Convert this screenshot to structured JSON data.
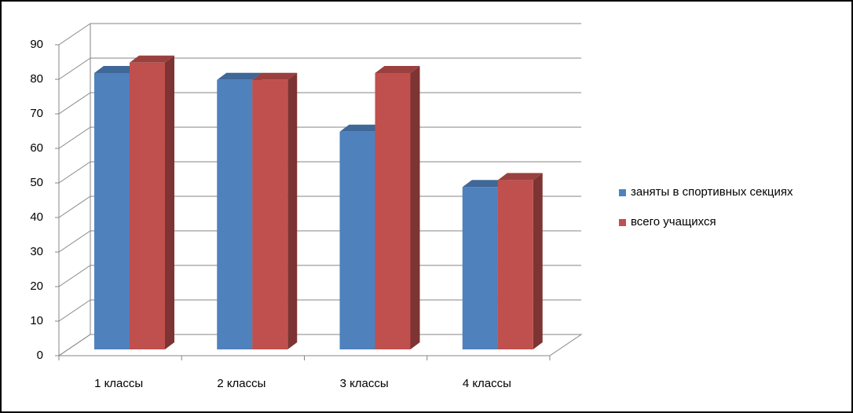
{
  "chart_data": {
    "type": "bar3d",
    "categories": [
      "1 классы",
      "2 классы",
      "3 классы",
      "4 классы"
    ],
    "series": [
      {
        "name": "заняты в спортивных секциях",
        "color": "#4f81bd",
        "values": [
          80,
          78,
          63,
          47
        ]
      },
      {
        "name": "всего учащихся",
        "color": "#c0504d",
        "values": [
          83,
          78,
          80,
          49
        ]
      }
    ],
    "ylim": [
      0,
      90
    ],
    "yticks": [
      0,
      10,
      20,
      30,
      40,
      50,
      60,
      70,
      80,
      90
    ],
    "grid": true,
    "legend": "right"
  }
}
